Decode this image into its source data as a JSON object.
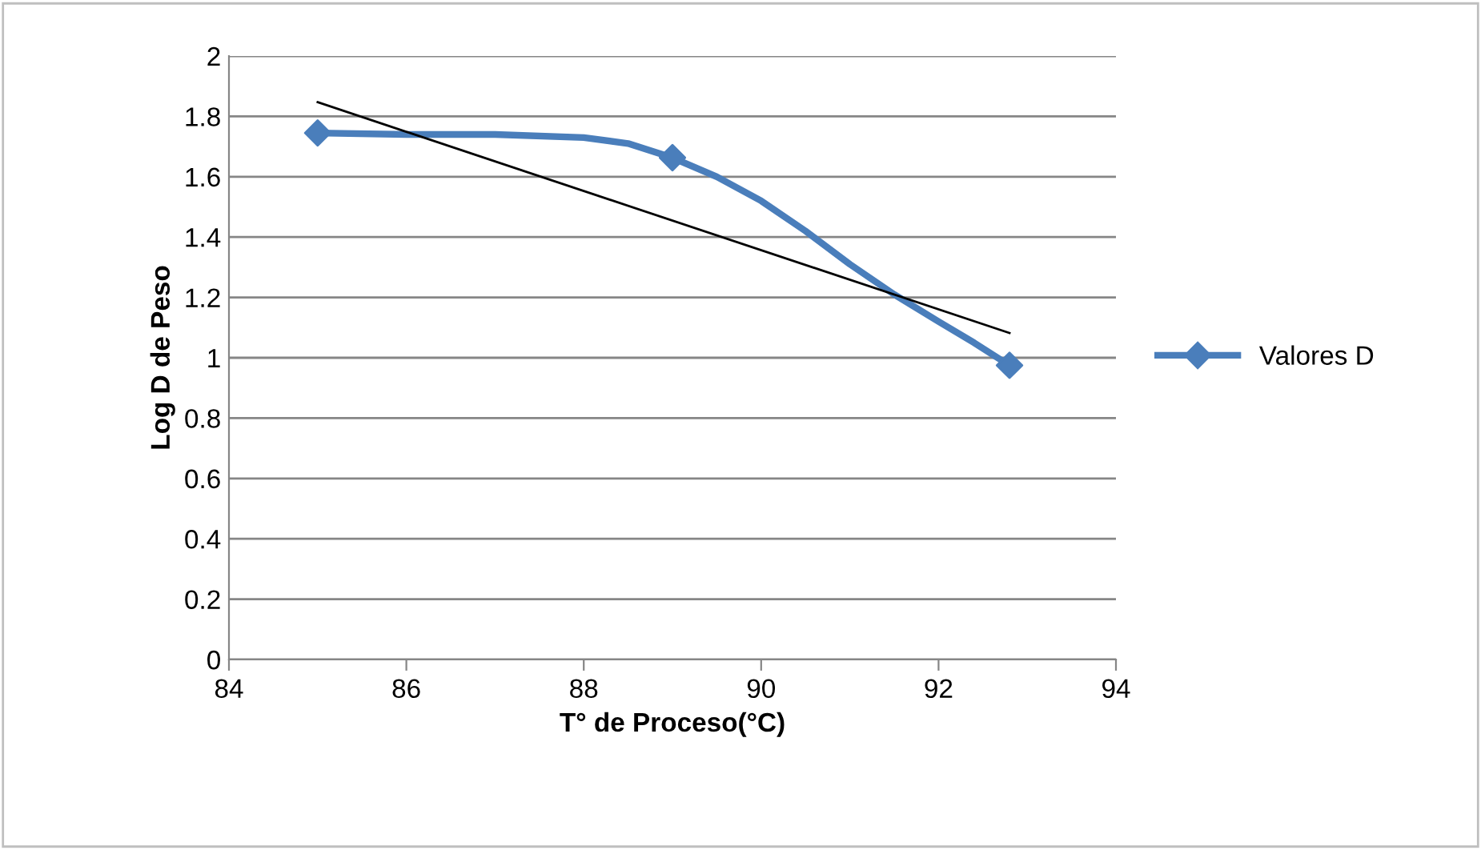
{
  "chart_data": {
    "type": "line",
    "xlabel": "T° de Proceso(°C)",
    "ylabel": "Log D de Peso",
    "series": [
      {
        "name": "Valores D",
        "color": "#4a7ebb",
        "x": [
          85,
          86,
          87,
          88,
          88.5,
          89,
          89.5,
          90,
          90.5,
          91,
          91.5,
          92,
          92.4,
          92.8
        ],
        "values": [
          1.745,
          1.74,
          1.74,
          1.73,
          1.71,
          1.663,
          1.6,
          1.52,
          1.42,
          1.31,
          1.21,
          1.12,
          1.05,
          0.975
        ],
        "marker": "none"
      },
      {
        "type": "scatter",
        "color": "#4a7ebb",
        "x": [
          85,
          89,
          92.8
        ],
        "values": [
          1.745,
          1.663,
          0.975
        ],
        "marker": "diamond"
      },
      {
        "type": "line",
        "color": "#000000",
        "x": [
          85,
          92.8
        ],
        "values": [
          1.847,
          1.082
        ],
        "marker": "none"
      }
    ],
    "xlim": [
      84,
      94
    ],
    "xticks": [
      84,
      86,
      88,
      90,
      92,
      94
    ],
    "ylim": [
      0,
      2
    ],
    "yticks": [
      0,
      0.2,
      0.4,
      0.6,
      0.8,
      1,
      1.2,
      1.4,
      1.6,
      1.8,
      2
    ],
    "grid": "y",
    "legend": "right"
  }
}
